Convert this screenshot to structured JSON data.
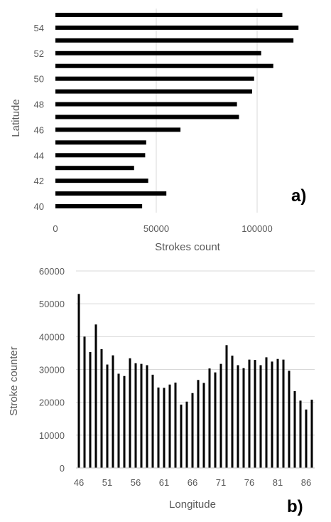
{
  "chart_data": [
    {
      "type": "bar",
      "orientation": "horizontal",
      "panel_label": "a)",
      "categories": [
        40,
        41,
        42,
        43,
        44,
        45,
        46,
        47,
        48,
        49,
        50,
        51,
        52,
        53,
        54,
        55
      ],
      "values": [
        43000,
        55000,
        46000,
        39000,
        44500,
        45000,
        62000,
        91000,
        90000,
        97500,
        98500,
        108000,
        102000,
        118000,
        120500,
        112500
      ],
      "tick_labels": [
        "40",
        "42",
        "44",
        "46",
        "48",
        "50",
        "52",
        "54"
      ],
      "tick_values": [
        40,
        42,
        44,
        46,
        48,
        50,
        52,
        54
      ],
      "x_ticks": [
        0,
        50000,
        100000
      ],
      "x_tick_labels": [
        "0",
        "50000",
        "100000"
      ],
      "xlabel": "Strokes count",
      "ylabel": "Latitude",
      "xlim": [
        0,
        125000
      ],
      "grid": "vertical",
      "bar_color": "#000000",
      "grid_color": "#d9d9d9"
    },
    {
      "type": "bar",
      "orientation": "vertical",
      "panel_label": "b)",
      "categories": [
        46,
        47,
        48,
        49,
        50,
        51,
        52,
        53,
        54,
        55,
        56,
        57,
        58,
        59,
        60,
        61,
        62,
        63,
        64,
        65,
        66,
        67,
        68,
        69,
        70,
        71,
        72,
        73,
        74,
        75,
        76,
        77,
        78,
        79,
        80,
        81,
        82,
        83,
        84,
        85,
        86,
        87
      ],
      "values": [
        53000,
        40000,
        35300,
        43700,
        36200,
        31500,
        34300,
        28700,
        28000,
        33400,
        31900,
        31700,
        31300,
        28400,
        24500,
        24400,
        25400,
        26000,
        19300,
        20200,
        22800,
        26800,
        25900,
        30300,
        29100,
        31700,
        37400,
        34200,
        31300,
        30400,
        33000,
        32900,
        31300,
        33700,
        32400,
        33200,
        33000,
        29600,
        23400,
        20500,
        17800,
        20800
      ],
      "tick_labels": [
        "46",
        "51",
        "56",
        "61",
        "66",
        "71",
        "76",
        "81",
        "86"
      ],
      "tick_values": [
        46,
        51,
        56,
        61,
        66,
        71,
        76,
        81,
        86
      ],
      "y_ticks": [
        0,
        10000,
        20000,
        30000,
        40000,
        50000,
        60000
      ],
      "y_tick_labels": [
        "0",
        "10000",
        "20000",
        "30000",
        "40000",
        "50000",
        "60000"
      ],
      "xlabel": "Longitude",
      "ylabel": "Stroke counter",
      "ylim": [
        0,
        60000
      ],
      "grid": "horizontal",
      "bar_color": "#000000",
      "grid_color": "#d9d9d9"
    }
  ]
}
